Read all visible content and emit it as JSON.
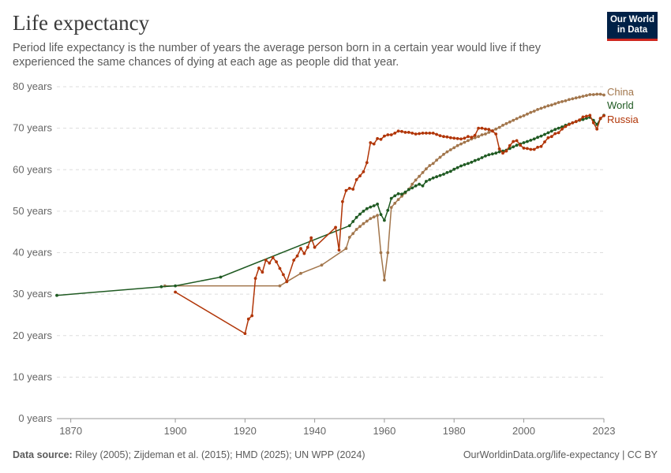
{
  "header": {
    "title": "Life expectancy",
    "subtitle": "Period life expectancy is the number of years the average person born in a certain year would live if they experienced the same chances of dying at each age as people did that year.",
    "logo_line1": "Our World",
    "logo_line2": "in Data"
  },
  "footer": {
    "source_label": "Data source:",
    "source_text": "Riley (2005); Zijdeman et al. (2015); HMD (2025); UN WPP (2024)",
    "url": "OurWorldinData.org/life-expectancy | CC BY"
  },
  "chart_data": {
    "type": "line",
    "title": "Life expectancy",
    "xlim": [
      1866,
      2023
    ],
    "ylim": [
      0,
      80
    ],
    "x_ticks": [
      1870,
      1900,
      1920,
      1940,
      1960,
      1980,
      2000,
      2023
    ],
    "y_ticks": [
      {
        "value": 0,
        "label": "0 years"
      },
      {
        "value": 10,
        "label": "10 years"
      },
      {
        "value": 20,
        "label": "20 years"
      },
      {
        "value": 30,
        "label": "30 years"
      },
      {
        "value": 40,
        "label": "40 years"
      },
      {
        "value": 50,
        "label": "50 years"
      },
      {
        "value": 60,
        "label": "60 years"
      },
      {
        "value": 70,
        "label": "70 years"
      },
      {
        "value": 80,
        "label": "80 years"
      }
    ],
    "grid": true,
    "legend": "right-end labels",
    "series": [
      {
        "name": "China",
        "color": "#a2764c",
        "x": [
          1897,
          1930,
          1932,
          1936,
          1942,
          1949,
          1950,
          1951,
          1952,
          1953,
          1954,
          1955,
          1956,
          1957,
          1958,
          1959,
          1960,
          1961,
          1962,
          1963,
          1964,
          1965,
          1966,
          1967,
          1968,
          1969,
          1970,
          1971,
          1972,
          1973,
          1974,
          1975,
          1976,
          1977,
          1978,
          1979,
          1980,
          1981,
          1982,
          1983,
          1984,
          1985,
          1986,
          1987,
          1988,
          1989,
          1990,
          1991,
          1992,
          1993,
          1994,
          1995,
          1996,
          1997,
          1998,
          1999,
          2000,
          2001,
          2002,
          2003,
          2004,
          2005,
          2006,
          2007,
          2008,
          2009,
          2010,
          2011,
          2012,
          2013,
          2014,
          2015,
          2016,
          2017,
          2018,
          2019,
          2020,
          2021,
          2022,
          2023
        ],
        "values": [
          32.0,
          32.0,
          33.0,
          35.0,
          37.0,
          41.0,
          43.7,
          44.6,
          45.6,
          46.3,
          47.0,
          47.6,
          48.2,
          48.6,
          49.0,
          40.0,
          33.4,
          40.0,
          50.9,
          51.9,
          52.8,
          53.6,
          54.4,
          55.3,
          56.5,
          57.5,
          58.4,
          59.3,
          60.2,
          61.0,
          61.5,
          62.3,
          63.0,
          63.7,
          64.3,
          64.8,
          65.3,
          65.8,
          66.2,
          66.6,
          67.0,
          67.4,
          67.7,
          68.0,
          68.4,
          68.6,
          69.0,
          69.4,
          69.8,
          70.2,
          70.7,
          71.1,
          71.5,
          71.9,
          72.3,
          72.7,
          73.0,
          73.4,
          73.8,
          74.1,
          74.5,
          74.8,
          75.1,
          75.4,
          75.6,
          75.9,
          76.2,
          76.4,
          76.6,
          76.9,
          77.1,
          77.3,
          77.5,
          77.7,
          77.9,
          78.1,
          78.1,
          78.2,
          78.2,
          78.0
        ]
      },
      {
        "name": "World",
        "color": "#1f5a22",
        "x": [
          1866,
          1896,
          1900,
          1913,
          1950,
          1951,
          1952,
          1953,
          1954,
          1955,
          1956,
          1957,
          1958,
          1959,
          1960,
          1961,
          1962,
          1963,
          1964,
          1965,
          1966,
          1967,
          1968,
          1969,
          1970,
          1971,
          1972,
          1973,
          1974,
          1975,
          1976,
          1977,
          1978,
          1979,
          1980,
          1981,
          1982,
          1983,
          1984,
          1985,
          1986,
          1987,
          1988,
          1989,
          1990,
          1991,
          1992,
          1993,
          1994,
          1995,
          1996,
          1997,
          1998,
          1999,
          2000,
          2001,
          2002,
          2003,
          2004,
          2005,
          2006,
          2007,
          2008,
          2009,
          2010,
          2011,
          2012,
          2013,
          2014,
          2015,
          2016,
          2017,
          2018,
          2019,
          2020,
          2021,
          2022,
          2023
        ],
        "values": [
          29.7,
          31.8,
          32.0,
          34.1,
          46.5,
          47.5,
          48.5,
          49.3,
          50.0,
          50.6,
          51.0,
          51.3,
          51.7,
          49.2,
          47.8,
          50.2,
          53.1,
          53.7,
          54.2,
          54.1,
          54.6,
          55.2,
          55.6,
          56.1,
          56.5,
          56.1,
          57.2,
          57.6,
          58.0,
          58.3,
          58.6,
          58.9,
          59.3,
          59.6,
          60.1,
          60.5,
          60.9,
          61.2,
          61.5,
          61.8,
          62.2,
          62.5,
          62.9,
          63.3,
          63.6,
          63.8,
          64.0,
          64.3,
          64.5,
          64.7,
          65.1,
          65.5,
          65.9,
          66.2,
          66.5,
          66.8,
          67.1,
          67.4,
          67.8,
          68.1,
          68.5,
          68.9,
          69.3,
          69.7,
          70.0,
          70.3,
          70.7,
          71.0,
          71.3,
          71.6,
          71.9,
          72.1,
          72.4,
          72.6,
          71.9,
          70.9,
          72.3,
          73.1
        ]
      },
      {
        "name": "Russia",
        "color": "#b13507",
        "x": [
          1900,
          1920,
          1921,
          1922,
          1923,
          1924,
          1925,
          1926,
          1927,
          1928,
          1929,
          1930,
          1931,
          1932,
          1934,
          1935,
          1936,
          1937,
          1938,
          1939,
          1940,
          1946,
          1947,
          1948,
          1949,
          1950,
          1951,
          1952,
          1953,
          1954,
          1955,
          1956,
          1957,
          1958,
          1959,
          1960,
          1961,
          1962,
          1963,
          1964,
          1965,
          1966,
          1967,
          1968,
          1969,
          1970,
          1971,
          1972,
          1973,
          1974,
          1975,
          1976,
          1977,
          1978,
          1979,
          1980,
          1981,
          1982,
          1983,
          1984,
          1985,
          1986,
          1987,
          1988,
          1989,
          1990,
          1991,
          1992,
          1993,
          1994,
          1995,
          1996,
          1997,
          1998,
          1999,
          2000,
          2001,
          2002,
          2003,
          2004,
          2005,
          2006,
          2007,
          2008,
          2009,
          2010,
          2011,
          2012,
          2013,
          2014,
          2015,
          2016,
          2017,
          2018,
          2019,
          2020,
          2021,
          2022,
          2023
        ],
        "values": [
          30.5,
          20.5,
          24.0,
          24.8,
          33.8,
          36.3,
          35.3,
          38.2,
          37.5,
          38.8,
          37.8,
          36.2,
          34.7,
          33.0,
          38.2,
          39.2,
          41.0,
          39.8,
          41.3,
          43.6,
          41.3,
          46.1,
          40.6,
          52.3,
          55.0,
          55.5,
          55.3,
          57.6,
          58.5,
          59.5,
          61.7,
          66.5,
          66.2,
          67.5,
          67.3,
          68.1,
          68.4,
          68.4,
          68.8,
          69.3,
          69.2,
          69.0,
          69.0,
          68.8,
          68.6,
          68.7,
          68.8,
          68.8,
          68.8,
          68.8,
          68.5,
          68.2,
          68.0,
          67.9,
          67.7,
          67.6,
          67.5,
          67.4,
          67.6,
          68.0,
          67.8,
          68.3,
          70.0,
          70.0,
          69.8,
          69.7,
          69.3,
          68.6,
          65.0,
          64.0,
          64.5,
          65.8,
          66.8,
          67.0,
          65.9,
          65.2,
          65.1,
          64.9,
          64.9,
          65.4,
          65.6,
          66.7,
          67.7,
          68.0,
          68.7,
          68.9,
          69.8,
          70.4,
          70.9,
          71.3,
          71.6,
          72.0,
          72.7,
          72.9,
          73.1,
          71.3,
          69.8,
          72.4,
          73.0
        ]
      }
    ]
  }
}
